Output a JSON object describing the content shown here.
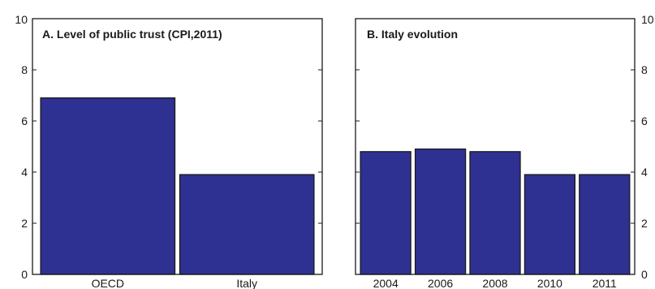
{
  "chart_data": [
    {
      "type": "bar",
      "title": "A. Level of public trust (CPI,2011)",
      "categories": [
        "OECD",
        "Italy"
      ],
      "values": [
        6.9,
        3.9
      ],
      "ylim": [
        0,
        10
      ],
      "yticks": [
        "0",
        "2",
        "4",
        "6",
        "8",
        "10"
      ],
      "axis_side": "left",
      "grid": false,
      "bar_color": "#2e3192"
    },
    {
      "type": "bar",
      "title": "B. Italy evolution",
      "categories": [
        "2004",
        "2006",
        "2008",
        "2010",
        "2011"
      ],
      "values": [
        4.8,
        4.9,
        4.8,
        3.9,
        3.9
      ],
      "ylim": [
        0,
        10
      ],
      "yticks": [
        "0",
        "2",
        "4",
        "6",
        "8",
        "10"
      ],
      "axis_side": "right",
      "grid": false,
      "bar_color": "#2e3192"
    }
  ]
}
